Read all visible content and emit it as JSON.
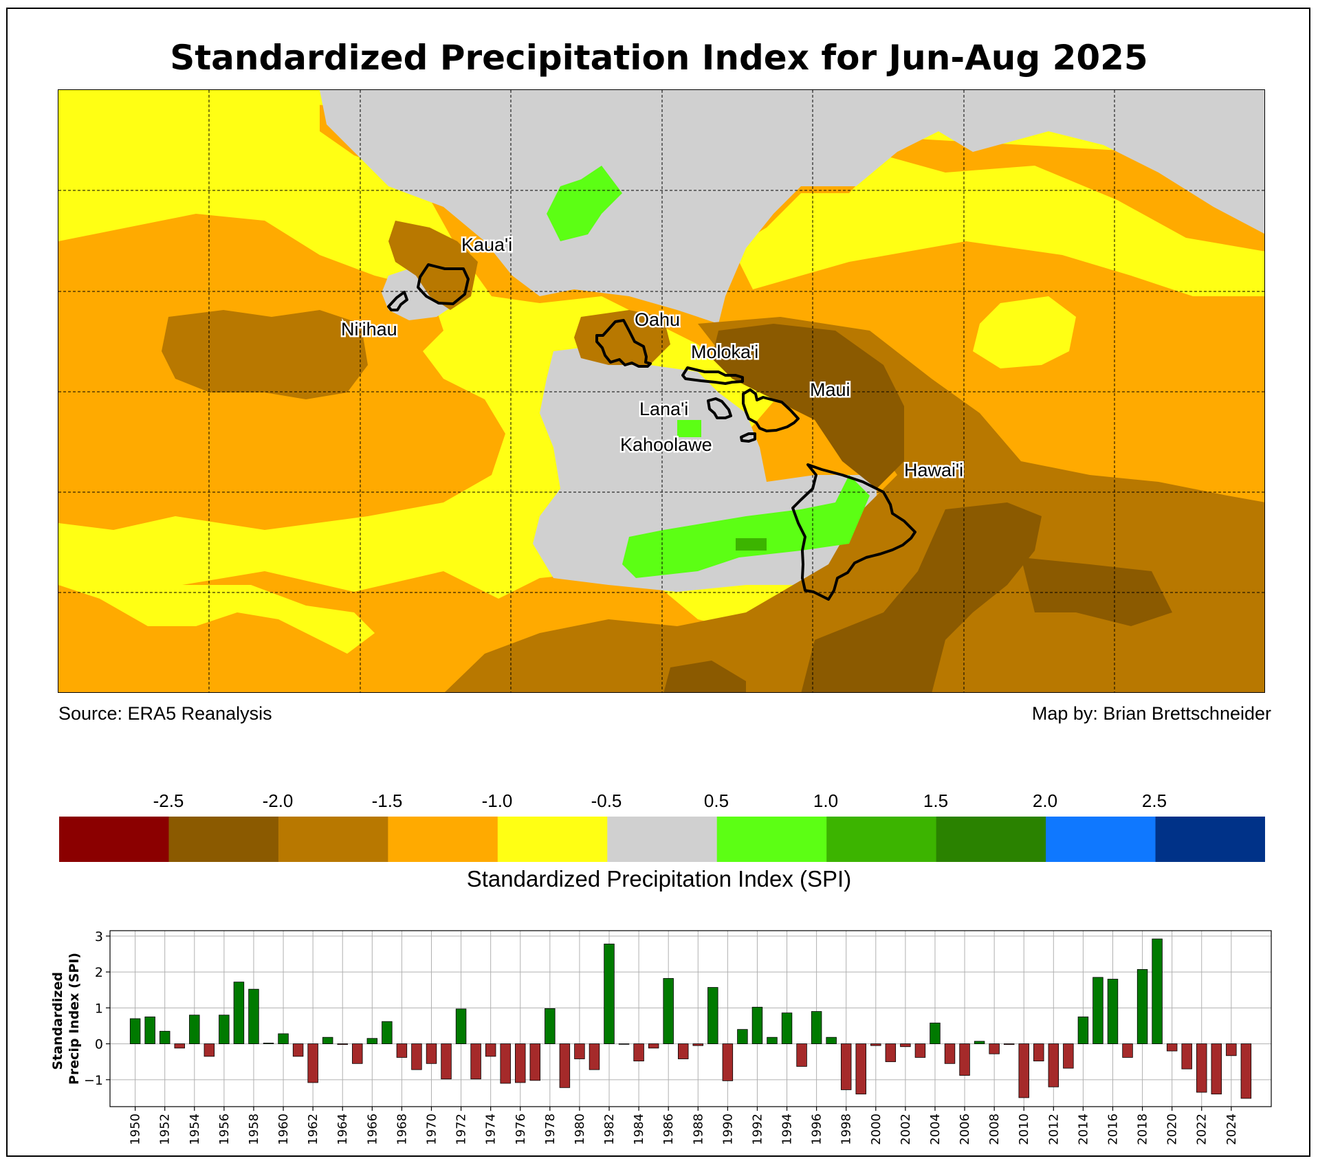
{
  "title": "Standardized Precipitation Index for Jun-Aug 2025",
  "credits": {
    "source": "Source: ERA5 Reanalysis",
    "map_by": "Map by: Brian Brettschneider"
  },
  "islands": [
    {
      "name": "Kaua'i"
    },
    {
      "name": "Ni'ihau"
    },
    {
      "name": "Oahu"
    },
    {
      "name": "Moloka'i"
    },
    {
      "name": "Maui"
    },
    {
      "name": "Lana'i"
    },
    {
      "name": "Kahoolawe"
    },
    {
      "name": "Hawai'i"
    }
  ],
  "colorbar": {
    "label": "Standardized Precipitation Index (SPI)",
    "ticks": [
      "-2.5",
      "-2.0",
      "-1.5",
      "-1.0",
      "-0.5",
      "0.5",
      "1.0",
      "1.5",
      "2.0",
      "2.5"
    ],
    "colors": [
      "#8b0000",
      "#8b5a00",
      "#b87800",
      "#ffaa00",
      "#ffff14",
      "#d0d0d0",
      "#5cff14",
      "#3cb400",
      "#2a8200",
      "#0f78ff",
      "#003288"
    ]
  },
  "palette": {
    "gray": "#d0d0d0",
    "yellow": "#ffff14",
    "orange": "#ffaa00",
    "tan": "#b87800",
    "brown": "#8b5a00",
    "green": "#5cff14",
    "darkgreen": "#3cb400"
  },
  "chart_data": {
    "type": "bar",
    "ylabel": "Standardized Precip Index (SPI)",
    "ylim": [
      -1.75,
      3.15
    ],
    "yticks": [
      3,
      2,
      1,
      0,
      -1
    ],
    "ytick_labels": [
      "3",
      "2",
      "1",
      "0",
      "−1"
    ],
    "xtick_labels": [
      "1950",
      "1952",
      "1954",
      "1956",
      "1958",
      "1960",
      "1962",
      "1964",
      "1966",
      "1968",
      "1970",
      "1972",
      "1974",
      "1976",
      "1978",
      "1980",
      "1982",
      "1984",
      "1986",
      "1988",
      "1990",
      "1992",
      "1994",
      "1996",
      "1998",
      "2000",
      "2002",
      "2004",
      "2006",
      "2008",
      "2010",
      "2012",
      "2014",
      "2016",
      "2018",
      "2020",
      "2022",
      "2024"
    ],
    "positive_color": "#007a00",
    "negative_color": "#a52a2a",
    "years": [
      1950,
      1951,
      1952,
      1953,
      1954,
      1955,
      1956,
      1957,
      1958,
      1959,
      1960,
      1961,
      1962,
      1963,
      1964,
      1965,
      1966,
      1967,
      1968,
      1969,
      1970,
      1971,
      1972,
      1973,
      1974,
      1975,
      1976,
      1977,
      1978,
      1979,
      1980,
      1981,
      1982,
      1983,
      1984,
      1985,
      1986,
      1987,
      1988,
      1989,
      1990,
      1991,
      1992,
      1993,
      1994,
      1995,
      1996,
      1997,
      1998,
      1999,
      2000,
      2001,
      2002,
      2003,
      2004,
      2005,
      2006,
      2007,
      2008,
      2009,
      2010,
      2011,
      2012,
      2013,
      2014,
      2015,
      2016,
      2017,
      2018,
      2019,
      2020,
      2021,
      2022,
      2023,
      2024,
      2025
    ],
    "values": [
      0.7,
      0.75,
      0.35,
      -0.12,
      0.8,
      -0.35,
      0.8,
      1.72,
      1.52,
      0.02,
      0.28,
      -0.35,
      -1.08,
      0.18,
      -0.02,
      -0.55,
      0.15,
      0.62,
      -0.38,
      -0.72,
      -0.55,
      -0.98,
      0.97,
      -0.98,
      -0.35,
      -1.1,
      -1.08,
      -1.02,
      0.98,
      -1.22,
      -0.42,
      -0.72,
      2.78,
      0.0,
      -0.48,
      -0.12,
      1.82,
      -0.42,
      -0.05,
      1.57,
      -1.03,
      0.4,
      1.02,
      0.18,
      0.86,
      -0.63,
      0.9,
      0.18,
      -1.28,
      -1.4,
      -0.05,
      -0.5,
      -0.08,
      -0.38,
      0.58,
      -0.55,
      -0.88,
      0.07,
      -0.28,
      -0.02,
      -1.5,
      -0.48,
      -1.2,
      -0.68,
      0.75,
      1.85,
      1.8,
      -0.38,
      2.07,
      2.92,
      -0.2,
      -0.7,
      -1.35,
      -1.4,
      -0.33,
      -1.52
    ]
  }
}
